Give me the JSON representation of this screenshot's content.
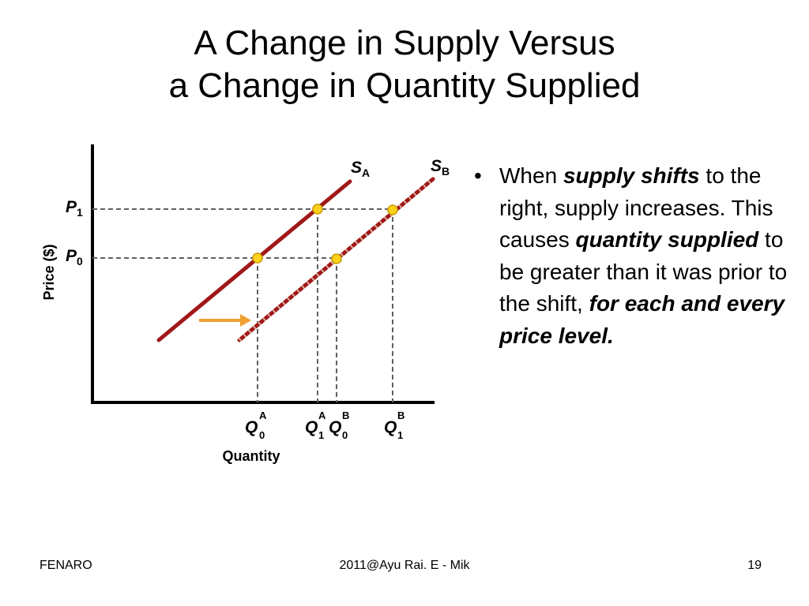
{
  "slide": {
    "title_line1": "A Change in Supply Versus",
    "title_line2": "a Change in Quantity Supplied"
  },
  "diagram": {
    "y_axis_label": "Price ($)",
    "x_axis_label": "Quantity",
    "curve_labels": [
      {
        "main": "S",
        "sub": "A"
      },
      {
        "main": "S",
        "sub": "B"
      }
    ],
    "price_labels": [
      {
        "main": "P",
        "sub": "1"
      },
      {
        "main": "P",
        "sub": "0"
      }
    ],
    "quantity_labels": [
      {
        "main": "Q",
        "sup": "A",
        "sub": "0"
      },
      {
        "main": "Q",
        "sup": "A",
        "sub": "1"
      },
      {
        "main": "Q",
        "sup": "B",
        "sub": "0"
      },
      {
        "main": "Q",
        "sup": "B",
        "sub": "1"
      }
    ],
    "colors": {
      "supply_curve": "#a01818",
      "point": "#ffd21a",
      "arrow": "#f0a030",
      "guide_lines": "#606060"
    }
  },
  "bullet": {
    "t1": "When ",
    "b1": "supply shifts",
    "t2": " to the right, supply increases. This causes ",
    "b2": "quantity supplied",
    "t3": " to be greater than it was prior to the shift, ",
    "b3": "for each and every price level."
  },
  "footer": {
    "left": "FENARO",
    "center": "2011@Ayu Rai. E - Mik",
    "page": "19"
  }
}
